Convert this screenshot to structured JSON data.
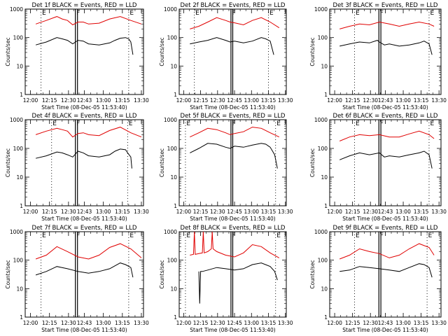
{
  "figure": {
    "xlabel": "Start Time (08-Dec-05 11:53:40)",
    "ylabel": "Counts/sec",
    "event_color": "#000000",
    "lld_color": "#e00000",
    "y_tick_labels": [
      "1",
      "10",
      "100",
      "1000"
    ]
  },
  "chart_data": [
    {
      "type": "line",
      "title": "Det 1f BLACK = Events, RED = LLD",
      "ylog": true,
      "ylim": [
        1,
        1000
      ],
      "x_ticks": [
        "12:00",
        "12:15",
        "12:30",
        "12:43",
        "13:00",
        "13:15",
        "13:30"
      ],
      "x_tick_min": [
        -5,
        13,
        31,
        46,
        64,
        82,
        100
      ],
      "xlim": [
        -10,
        102
      ],
      "markers": [
        {
          "label": "E",
          "x": 5,
          "style": "dotted"
        },
        {
          "label": "F",
          "x": 37.5,
          "style": "solid",
          "x2": 39.5
        },
        {
          "label": "E",
          "x": 88,
          "style": "dotted"
        }
      ],
      "series": [
        {
          "color": "red",
          "x": [
            0,
            10,
            20,
            25,
            30,
            35,
            40,
            45,
            50,
            60,
            70,
            80,
            90,
            100
          ],
          "y": [
            300,
            400,
            550,
            450,
            400,
            280,
            350,
            350,
            300,
            320,
            450,
            550,
            400,
            300
          ]
        },
        {
          "color": "black",
          "x": [
            0,
            10,
            20,
            25,
            30,
            35,
            40,
            45,
            50,
            60,
            70,
            75,
            80,
            85,
            88,
            90,
            92
          ],
          "y": [
            55,
            70,
            100,
            90,
            80,
            60,
            80,
            75,
            60,
            55,
            65,
            80,
            95,
            100,
            90,
            70,
            25
          ]
        }
      ]
    },
    {
      "type": "line",
      "title": "Det 2f BLACK = Events, RED = LLD",
      "ylog": true,
      "ylim": [
        1,
        1000
      ],
      "x_ticks": [
        "12:00",
        "12:15",
        "12:30",
        "12:45",
        "13:00",
        "13:15",
        "13:30"
      ],
      "x_tick_min": [
        -7,
        12,
        31,
        50,
        69,
        88,
        107
      ],
      "xlim": [
        -12,
        108
      ],
      "markers": [
        {
          "label": "E",
          "x": 5,
          "style": "dotted"
        },
        {
          "label": "F",
          "x": 46,
          "style": "solid",
          "x2": 48
        },
        {
          "label": "E",
          "x": 88,
          "style": "dotted"
        }
      ],
      "series": [
        {
          "color": "red",
          "x": [
            0,
            10,
            20,
            30,
            40,
            45,
            50,
            60,
            70,
            80,
            90,
            100
          ],
          "y": [
            200,
            250,
            350,
            500,
            400,
            350,
            330,
            280,
            400,
            500,
            350,
            220
          ]
        },
        {
          "color": "black",
          "x": [
            0,
            10,
            20,
            30,
            40,
            45,
            50,
            60,
            70,
            80,
            85,
            90,
            94
          ],
          "y": [
            60,
            70,
            80,
            100,
            80,
            70,
            75,
            65,
            75,
            100,
            90,
            75,
            25
          ]
        }
      ]
    },
    {
      "type": "line",
      "title": "Det 3f BLACK = Events, RED = LLD",
      "ylog": true,
      "ylim": [
        1,
        1000
      ],
      "x_ticks": [
        "12:00",
        "12:15",
        "12:30",
        "12:43",
        "13:00",
        "13:15",
        "13:30"
      ],
      "x_tick_min": [
        -5,
        13,
        31,
        46,
        64,
        82,
        100
      ],
      "xlim": [
        -10,
        102
      ],
      "markers": [
        {
          "label": "E",
          "x": 15,
          "style": "dotted"
        },
        {
          "label": "F",
          "x": 39.5,
          "style": "solid",
          "x2": 41.5
        },
        {
          "label": "E",
          "x": 90,
          "style": "dotted"
        }
      ],
      "series": [
        {
          "color": "red",
          "x": [
            0,
            10,
            20,
            30,
            40,
            50,
            60,
            70,
            80,
            90,
            95
          ],
          "y": [
            200,
            250,
            300,
            280,
            350,
            300,
            250,
            300,
            350,
            300,
            250
          ]
        },
        {
          "color": "black",
          "x": [
            0,
            10,
            20,
            30,
            38,
            40,
            45,
            50,
            60,
            70,
            80,
            85,
            90,
            93
          ],
          "y": [
            50,
            60,
            70,
            65,
            80,
            70,
            55,
            60,
            50,
            55,
            65,
            75,
            60,
            25
          ]
        }
      ]
    },
    {
      "type": "line",
      "title": "Det 4f BLACK = Events, RED = LLD",
      "ylog": true,
      "ylim": [
        1,
        1000
      ],
      "x_ticks": [
        "12:00",
        "12:15",
        "12:30",
        "12:43",
        "13:00",
        "13:15",
        "13:30"
      ],
      "x_tick_min": [
        -5,
        13,
        31,
        46,
        64,
        82,
        100
      ],
      "xlim": [
        -10,
        102
      ],
      "markers": [
        {
          "label": "E",
          "x": 15,
          "style": "dotted"
        },
        {
          "label": "F",
          "x": 37.5,
          "style": "solid",
          "x2": 39.5
        },
        {
          "label": "E",
          "x": 87,
          "style": "dotted"
        }
      ],
      "series": [
        {
          "color": "red",
          "x": [
            0,
            10,
            20,
            25,
            30,
            35,
            40,
            45,
            50,
            60,
            70,
            80,
            90,
            100
          ],
          "y": [
            300,
            400,
            500,
            450,
            400,
            250,
            330,
            350,
            300,
            280,
            420,
            550,
            350,
            250
          ]
        },
        {
          "color": "black",
          "x": [
            0,
            10,
            20,
            25,
            30,
            35,
            40,
            45,
            50,
            60,
            70,
            75,
            80,
            85,
            87,
            90,
            91
          ],
          "y": [
            45,
            55,
            75,
            70,
            60,
            50,
            80,
            70,
            55,
            50,
            60,
            80,
            95,
            90,
            70,
            50,
            20
          ]
        }
      ]
    },
    {
      "type": "line",
      "title": "Det 5f BLACK = Events, RED = LLD",
      "ylog": true,
      "ylim": [
        1,
        1000
      ],
      "x_ticks": [
        "12:00",
        "12:15",
        "12:30",
        "12:45",
        "13:00",
        "13:15",
        "13:30"
      ],
      "x_tick_min": [
        -7,
        12,
        31,
        50,
        69,
        88,
        107
      ],
      "xlim": [
        -12,
        108
      ],
      "markers": [
        {
          "label": "E",
          "x": -5,
          "style": "dotted"
        },
        {
          "label": "F",
          "x": 46,
          "style": "solid",
          "x2": 48
        },
        {
          "label": "E",
          "x": 96,
          "style": "dotted"
        }
      ],
      "series": [
        {
          "color": "red",
          "x": [
            0,
            10,
            20,
            30,
            40,
            45,
            50,
            60,
            70,
            80,
            90,
            100
          ],
          "y": [
            250,
            350,
            500,
            450,
            350,
            300,
            330,
            380,
            550,
            500,
            350,
            250
          ]
        },
        {
          "color": "black",
          "x": [
            0,
            10,
            20,
            30,
            40,
            45,
            50,
            60,
            70,
            80,
            85,
            90,
            95,
            98
          ],
          "y": [
            70,
            100,
            150,
            140,
            110,
            100,
            120,
            110,
            130,
            150,
            140,
            110,
            60,
            20
          ]
        }
      ]
    },
    {
      "type": "line",
      "title": "Det 6f BLACK = Events, RED = LLD",
      "ylog": true,
      "ylim": [
        1,
        1000
      ],
      "x_ticks": [
        "12:00",
        "12:15",
        "12:30",
        "12:43",
        "13:00",
        "13:15",
        "13:30"
      ],
      "x_tick_min": [
        -5,
        13,
        31,
        46,
        64,
        82,
        100
      ],
      "xlim": [
        -10,
        102
      ],
      "markers": [
        {
          "label": "E",
          "x": 15,
          "style": "dotted"
        },
        {
          "label": "F",
          "x": 39.5,
          "style": "solid",
          "x2": 41.5
        },
        {
          "label": "E",
          "x": 90,
          "style": "dotted"
        }
      ],
      "series": [
        {
          "color": "red",
          "x": [
            0,
            10,
            20,
            30,
            40,
            50,
            60,
            70,
            80,
            90,
            95
          ],
          "y": [
            180,
            250,
            300,
            280,
            300,
            250,
            250,
            320,
            400,
            300,
            220
          ]
        },
        {
          "color": "black",
          "x": [
            0,
            10,
            20,
            30,
            40,
            45,
            50,
            60,
            70,
            80,
            85,
            90,
            93
          ],
          "y": [
            40,
            55,
            70,
            60,
            70,
            50,
            55,
            50,
            60,
            70,
            80,
            60,
            20
          ]
        }
      ]
    },
    {
      "type": "line",
      "title": "Det 7f BLACK = Events, RED = LLD",
      "ylog": true,
      "ylim": [
        1,
        1000
      ],
      "x_ticks": [
        "12:00",
        "12:15",
        "12:30",
        "12:43",
        "13:00",
        "13:15",
        "13:30"
      ],
      "x_tick_min": [
        -5,
        13,
        31,
        46,
        64,
        82,
        100
      ],
      "xlim": [
        -10,
        102
      ],
      "markers": [
        {
          "label": "E",
          "x": 5,
          "style": "dotted"
        },
        {
          "label": "F",
          "x": 37.5,
          "style": "solid",
          "x2": 39.5
        },
        {
          "label": "E",
          "x": 88,
          "style": "dotted"
        }
      ],
      "series": [
        {
          "color": "red",
          "x": [
            0,
            10,
            20,
            30,
            40,
            50,
            60,
            70,
            80,
            90,
            100
          ],
          "y": [
            110,
            150,
            300,
            200,
            130,
            110,
            150,
            280,
            380,
            250,
            120
          ]
        },
        {
          "color": "black",
          "x": [
            0,
            10,
            20,
            30,
            40,
            50,
            60,
            70,
            80,
            85,
            90,
            92
          ],
          "y": [
            30,
            40,
            60,
            50,
            40,
            35,
            40,
            50,
            80,
            70,
            55,
            25
          ]
        }
      ]
    },
    {
      "type": "line",
      "title": "Det 8f BLACK = Events, RED = LLD",
      "ylog": true,
      "ylim": [
        1,
        1000
      ],
      "x_ticks": [
        "12:00",
        "12:15",
        "12:30",
        "12:45",
        "13:00",
        "13:15",
        "13:30"
      ],
      "x_tick_min": [
        -7,
        12,
        31,
        50,
        69,
        88,
        107
      ],
      "xlim": [
        -12,
        108
      ],
      "markers": [
        {
          "label": "E",
          "x": -5,
          "style": "dotted"
        },
        {
          "label": "F",
          "x": 46,
          "style": "solid",
          "x2": 48
        },
        {
          "label": "E",
          "x": 96,
          "style": "dotted"
        }
      ],
      "series": [
        {
          "color": "red",
          "x": [
            0,
            4,
            5,
            6,
            10,
            14,
            15,
            16,
            20,
            24,
            25,
            26,
            30,
            40,
            50,
            60,
            70,
            80,
            90,
            100
          ],
          "y": [
            150,
            160,
            1000,
            160,
            170,
            180,
            1000,
            180,
            200,
            250,
            1000,
            250,
            200,
            150,
            130,
            180,
            350,
            300,
            180,
            120
          ]
        },
        {
          "color": "black",
          "x": [
            10,
            11,
            12,
            14,
            20,
            30,
            40,
            50,
            60,
            70,
            80,
            90,
            95,
            98
          ],
          "y": [
            40,
            3,
            40,
            40,
            45,
            55,
            50,
            45,
            50,
            70,
            80,
            60,
            40,
            20
          ]
        }
      ]
    },
    {
      "type": "line",
      "title": "Det 9f BLACK = Events, RED = LLD",
      "ylog": true,
      "ylim": [
        1,
        1000
      ],
      "x_ticks": [
        "12:00",
        "12:15",
        "12:30",
        "12:43",
        "13:00",
        "13:15",
        "13:30"
      ],
      "x_tick_min": [
        -5,
        13,
        31,
        46,
        64,
        82,
        100
      ],
      "xlim": [
        -10,
        102
      ],
      "markers": [
        {
          "label": "E",
          "x": 15,
          "style": "dotted"
        },
        {
          "label": "F",
          "x": 39.5,
          "style": "solid",
          "x2": 41.5
        },
        {
          "label": "E",
          "x": 88,
          "style": "dotted"
        }
      ],
      "series": [
        {
          "color": "red",
          "x": [
            0,
            10,
            20,
            30,
            40,
            50,
            60,
            70,
            80,
            90,
            95
          ],
          "y": [
            110,
            150,
            250,
            200,
            170,
            120,
            150,
            250,
            380,
            280,
            150
          ]
        },
        {
          "color": "black",
          "x": [
            0,
            10,
            20,
            30,
            40,
            50,
            60,
            70,
            80,
            85,
            90,
            93
          ],
          "y": [
            40,
            45,
            60,
            55,
            50,
            45,
            40,
            55,
            75,
            70,
            55,
            25
          ]
        }
      ]
    }
  ]
}
